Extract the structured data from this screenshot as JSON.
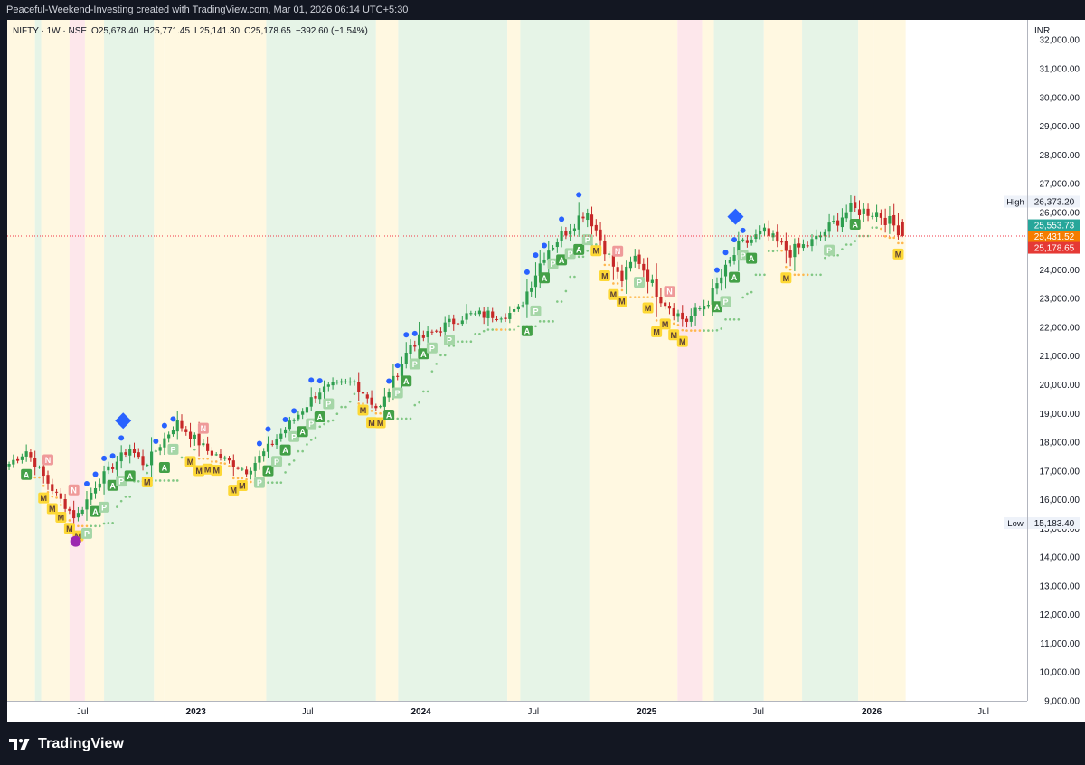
{
  "header": {
    "attribution": "Peaceful-Weekend-Investing created with TradingView.com, Mar 01, 2026 06:14 UTC+5:30"
  },
  "brand": {
    "name": "TradingView",
    "logo_icon": "tradingview-logo-icon"
  },
  "colors": {
    "bull": "#26a69a",
    "bear": "#ef5350",
    "candle_up": "#2e9e4f",
    "candle_down": "#c62828",
    "band_green": "#e6f4e7",
    "band_yellow": "#fff8e1",
    "band_pink": "#fde7eb",
    "trail_orange": "#ffb74d",
    "trail_green": "#81c784",
    "dot_blue": "#2962ff",
    "marker_purple": "#9c27b0",
    "price_line": "#f23645"
  },
  "chart_data": {
    "type": "candlestick",
    "symbol_line": {
      "symbol": "NIFTY · 1W · NSE",
      "open": "O25,678.40",
      "high": "H25,771.45",
      "low": "L25,141.30",
      "close": "C25,178.65",
      "change": "−392.60 (−1.54%)"
    },
    "currency": "INR",
    "y_range": [
      9000,
      32700
    ],
    "y_ticks": [
      "32,000.00",
      "31,000.00",
      "30,000.00",
      "29,000.00",
      "28,000.00",
      "27,000.00",
      "26,000.00",
      "25,000.00",
      "24,000.00",
      "23,000.00",
      "22,000.00",
      "21,000.00",
      "20,000.00",
      "19,000.00",
      "18,000.00",
      "17,000.00",
      "16,000.00",
      "15,000.00",
      "14,000.00",
      "13,000.00",
      "12,000.00",
      "11,000.00",
      "10,000.00",
      "9,000.00"
    ],
    "y_tick_values": [
      32000,
      31000,
      30000,
      29000,
      28000,
      27000,
      26000,
      25000,
      24000,
      23000,
      22000,
      21000,
      20000,
      19000,
      18000,
      17000,
      16000,
      15000,
      14000,
      13000,
      12000,
      11000,
      10000,
      9000
    ],
    "x_labels": [
      {
        "label": "Jul",
        "date": "2022-07-01"
      },
      {
        "label": "2023",
        "date": "2023-01-01"
      },
      {
        "label": "Jul",
        "date": "2023-07-01"
      },
      {
        "label": "2024",
        "date": "2024-01-01"
      },
      {
        "label": "Jul",
        "date": "2024-07-01"
      },
      {
        "label": "2025",
        "date": "2025-01-01"
      },
      {
        "label": "Jul",
        "date": "2025-07-01"
      },
      {
        "label": "2026",
        "date": "2026-01-01"
      },
      {
        "label": "Jul",
        "date": "2026-07-01"
      }
    ],
    "x_range": [
      "2022-03-01",
      "2026-09-10"
    ],
    "price_labels": [
      {
        "tag": "High",
        "value": "26,373.20",
        "price": 26373.2,
        "style": "plain"
      },
      {
        "tag": "",
        "value": "25,553.73",
        "price": 25553.73,
        "style": "teal"
      },
      {
        "tag": "",
        "value": "25,431.52",
        "price": 25431.52,
        "style": "orange"
      },
      {
        "tag": "",
        "value": "25,178.65",
        "price": 25178.65,
        "style": "red"
      },
      {
        "tag": "Low",
        "value": "15,183.40",
        "price": 15183.4,
        "style": "plain"
      }
    ],
    "current_price": 25178.65,
    "regime_bands": [
      {
        "from": "2022-03-01",
        "to": "2022-04-15",
        "regime": "yellow"
      },
      {
        "from": "2022-04-15",
        "to": "2022-04-25",
        "regime": "green"
      },
      {
        "from": "2022-04-25",
        "to": "2022-06-10",
        "regime": "yellow"
      },
      {
        "from": "2022-06-10",
        "to": "2022-07-05",
        "regime": "pink"
      },
      {
        "from": "2022-07-05",
        "to": "2022-08-05",
        "regime": "yellow"
      },
      {
        "from": "2022-08-05",
        "to": "2022-10-25",
        "regime": "green"
      },
      {
        "from": "2022-10-25",
        "to": "2022-11-10",
        "regime": "yellow"
      },
      {
        "from": "2022-11-10",
        "to": "2023-04-25",
        "regime": "yellow"
      },
      {
        "from": "2023-04-25",
        "to": "2023-10-20",
        "regime": "green"
      },
      {
        "from": "2023-10-20",
        "to": "2023-11-25",
        "regime": "yellow"
      },
      {
        "from": "2023-11-25",
        "to": "2024-05-20",
        "regime": "green"
      },
      {
        "from": "2024-05-20",
        "to": "2024-06-10",
        "regime": "yellow"
      },
      {
        "from": "2024-06-10",
        "to": "2024-09-30",
        "regime": "green"
      },
      {
        "from": "2024-09-30",
        "to": "2025-02-20",
        "regime": "yellow"
      },
      {
        "from": "2025-02-20",
        "to": "2025-04-01",
        "regime": "pink"
      },
      {
        "from": "2025-04-01",
        "to": "2025-04-20",
        "regime": "yellow"
      },
      {
        "from": "2025-04-20",
        "to": "2025-07-10",
        "regime": "green"
      },
      {
        "from": "2025-07-10",
        "to": "2025-09-10",
        "regime": "yellow"
      },
      {
        "from": "2025-09-10",
        "to": "2025-12-10",
        "regime": "green"
      },
      {
        "from": "2025-12-10",
        "to": "2026-01-05",
        "regime": "yellow"
      },
      {
        "from": "2026-01-05",
        "to": "2026-02-25",
        "regime": "yellow"
      }
    ],
    "anchors": [
      {
        "date": "2022-03-01",
        "price": 17200
      },
      {
        "date": "2022-04-01",
        "price": 17700
      },
      {
        "date": "2022-05-15",
        "price": 16300
      },
      {
        "date": "2022-06-20",
        "price": 15350
      },
      {
        "date": "2022-07-25",
        "price": 16600
      },
      {
        "date": "2022-09-15",
        "price": 17800
      },
      {
        "date": "2022-10-10",
        "price": 17200
      },
      {
        "date": "2022-12-01",
        "price": 18700
      },
      {
        "date": "2023-01-20",
        "price": 17700
      },
      {
        "date": "2023-03-25",
        "price": 17000
      },
      {
        "date": "2023-05-15",
        "price": 18200
      },
      {
        "date": "2023-07-20",
        "price": 19800
      },
      {
        "date": "2023-09-15",
        "price": 20100
      },
      {
        "date": "2023-10-25",
        "price": 19100
      },
      {
        "date": "2023-12-15",
        "price": 21400
      },
      {
        "date": "2024-03-10",
        "price": 22400
      },
      {
        "date": "2024-06-05",
        "price": 22500
      },
      {
        "date": "2024-07-20",
        "price": 24600
      },
      {
        "date": "2024-09-25",
        "price": 26100
      },
      {
        "date": "2024-11-20",
        "price": 23600
      },
      {
        "date": "2024-12-15",
        "price": 24500
      },
      {
        "date": "2025-01-20",
        "price": 23100
      },
      {
        "date": "2025-03-05",
        "price": 22200
      },
      {
        "date": "2025-04-10",
        "price": 22900
      },
      {
        "date": "2025-05-30",
        "price": 24800
      },
      {
        "date": "2025-07-10",
        "price": 25300
      },
      {
        "date": "2025-08-20",
        "price": 24600
      },
      {
        "date": "2025-09-30",
        "price": 25000
      },
      {
        "date": "2025-11-25",
        "price": 26100
      },
      {
        "date": "2026-01-10",
        "price": 26000
      },
      {
        "date": "2026-02-20",
        "price": 25300
      }
    ],
    "diamond_markers": [
      {
        "date": "2022-09-05",
        "price": 18750
      },
      {
        "date": "2025-05-25",
        "price": 25850
      }
    ],
    "circle_markers": [
      {
        "date": "2022-06-20",
        "price": 14550
      }
    ]
  }
}
